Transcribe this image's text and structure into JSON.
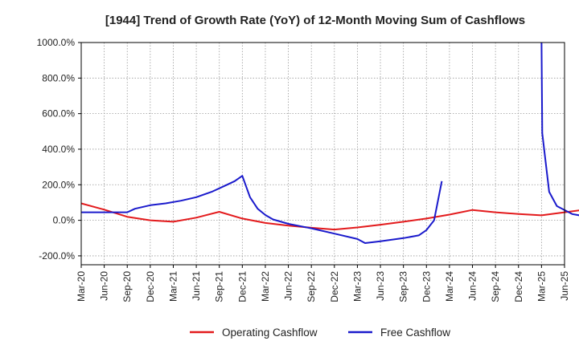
{
  "chart_data": {
    "type": "line",
    "title": "[1944]  Trend of Growth Rate (YoY) of 12-Month Moving Sum of Cashflows",
    "xlabel": "",
    "ylabel": "",
    "ylim": [
      -250,
      1000
    ],
    "y_ticks": [
      -200,
      0,
      200,
      400,
      600,
      800,
      1000
    ],
    "y_tick_labels": [
      "-200.0%",
      "0.0%",
      "200.0%",
      "400.0%",
      "600.0%",
      "800.0%",
      "1000.0%"
    ],
    "x_tick_labels": [
      "Mar-20",
      "Jun-20",
      "Sep-20",
      "Dec-20",
      "Mar-21",
      "Jun-21",
      "Sep-21",
      "Dec-21",
      "Mar-22",
      "Jun-22",
      "Sep-22",
      "Dec-22",
      "Mar-23",
      "Jun-23",
      "Sep-23",
      "Dec-23",
      "Mar-24",
      "Jun-24",
      "Sep-24",
      "Dec-24",
      "Mar-25",
      "Jun-25"
    ],
    "grid": true,
    "legend_position": "bottom",
    "series": [
      {
        "name": "Operating Cashflow",
        "color": "#e31a1c",
        "values": [
          [
            0,
            95
          ],
          [
            3,
            60
          ],
          [
            6,
            20
          ],
          [
            9,
            0
          ],
          [
            12,
            -8
          ],
          [
            15,
            15
          ],
          [
            18,
            48
          ],
          [
            21,
            10
          ],
          [
            24,
            -15
          ],
          [
            27,
            -30
          ],
          [
            30,
            -42
          ],
          [
            33,
            -52
          ],
          [
            36,
            -40
          ],
          [
            39,
            -25
          ],
          [
            42,
            -8
          ],
          [
            45,
            10
          ],
          [
            48,
            32
          ],
          [
            51,
            58
          ],
          [
            54,
            45
          ],
          [
            57,
            35
          ],
          [
            60,
            28
          ],
          [
            63,
            45
          ],
          [
            66,
            62
          ],
          [
            69,
            80
          ],
          [
            72,
            30
          ],
          [
            75,
            -5
          ],
          [
            78,
            -38
          ]
        ]
      },
      {
        "name": "Free Cashflow",
        "color": "#1a1acc",
        "values": [
          [
            0,
            45
          ],
          [
            3,
            45
          ],
          [
            6,
            45
          ],
          [
            7,
            65
          ],
          [
            9,
            85
          ],
          [
            11,
            95
          ],
          [
            13,
            110
          ],
          [
            15,
            130
          ],
          [
            17,
            160
          ],
          [
            19,
            200
          ],
          [
            20,
            220
          ],
          [
            21,
            250
          ],
          [
            22,
            130
          ],
          [
            23,
            65
          ],
          [
            24,
            30
          ],
          [
            25,
            5
          ],
          [
            27,
            -20
          ],
          [
            30,
            -45
          ],
          [
            33,
            -75
          ],
          [
            36,
            -105
          ],
          [
            37,
            -128
          ],
          [
            39,
            -118
          ],
          [
            42,
            -100
          ],
          [
            44,
            -85
          ],
          [
            45,
            -55
          ],
          [
            46,
            0
          ],
          [
            47,
            220
          ]
        ]
      },
      {
        "name": "Free Cashflow",
        "color": "#1a1acc",
        "values": [
          [
            60,
            1000
          ],
          [
            60.1,
            490
          ],
          [
            61,
            160
          ],
          [
            62,
            80
          ],
          [
            64,
            35
          ],
          [
            66,
            20
          ],
          [
            69,
            30
          ],
          [
            71,
            42
          ],
          [
            74,
            50
          ],
          [
            76,
            65
          ],
          [
            78,
            75
          ]
        ]
      }
    ]
  },
  "legend": [
    {
      "label": "Operating Cashflow",
      "color": "#e31a1c"
    },
    {
      "label": "Free Cashflow",
      "color": "#1a1acc"
    }
  ]
}
